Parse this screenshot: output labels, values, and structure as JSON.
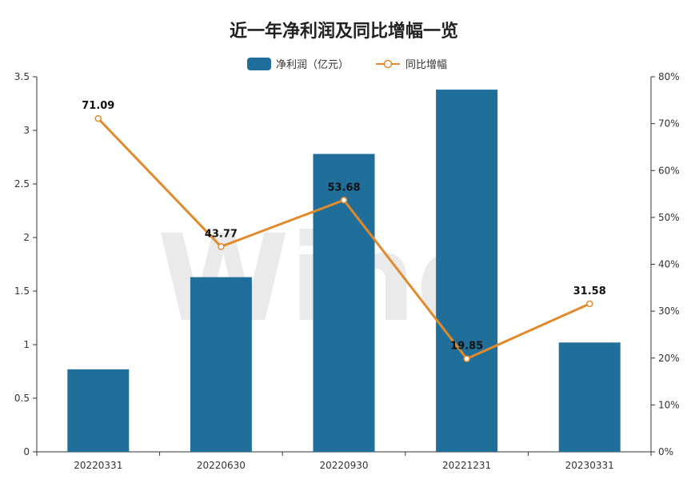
{
  "chart_data": {
    "type": "bar",
    "title": "近一年净利润及同比增幅一览",
    "categories": [
      "20220331",
      "20220630",
      "20220930",
      "20221231",
      "20230331"
    ],
    "series": [
      {
        "name": "净利润（亿元）",
        "type": "bar",
        "axis": "left",
        "color": "#1f6f9a",
        "values": [
          0.77,
          1.63,
          2.78,
          3.38,
          1.02
        ]
      },
      {
        "name": "同比增幅",
        "type": "line",
        "axis": "right",
        "color": "#e08a2c",
        "values": [
          71.09,
          43.77,
          53.68,
          19.85,
          31.58
        ],
        "labels": [
          "71.09",
          "43.77",
          "53.68",
          "19.85",
          "31.58"
        ]
      }
    ],
    "y_left": {
      "ylim": [
        0,
        3.5
      ],
      "ticks": [
        "0",
        "0.5",
        "1",
        "1.5",
        "2",
        "2.5",
        "3",
        "3.5"
      ]
    },
    "y_right": {
      "ylim": [
        0,
        80
      ],
      "ticks": [
        "0%",
        "10%",
        "20%",
        "30%",
        "40%",
        "50%",
        "60%",
        "70%",
        "80%"
      ]
    },
    "legend": "top-center",
    "grid": false
  },
  "watermark": "Wind"
}
